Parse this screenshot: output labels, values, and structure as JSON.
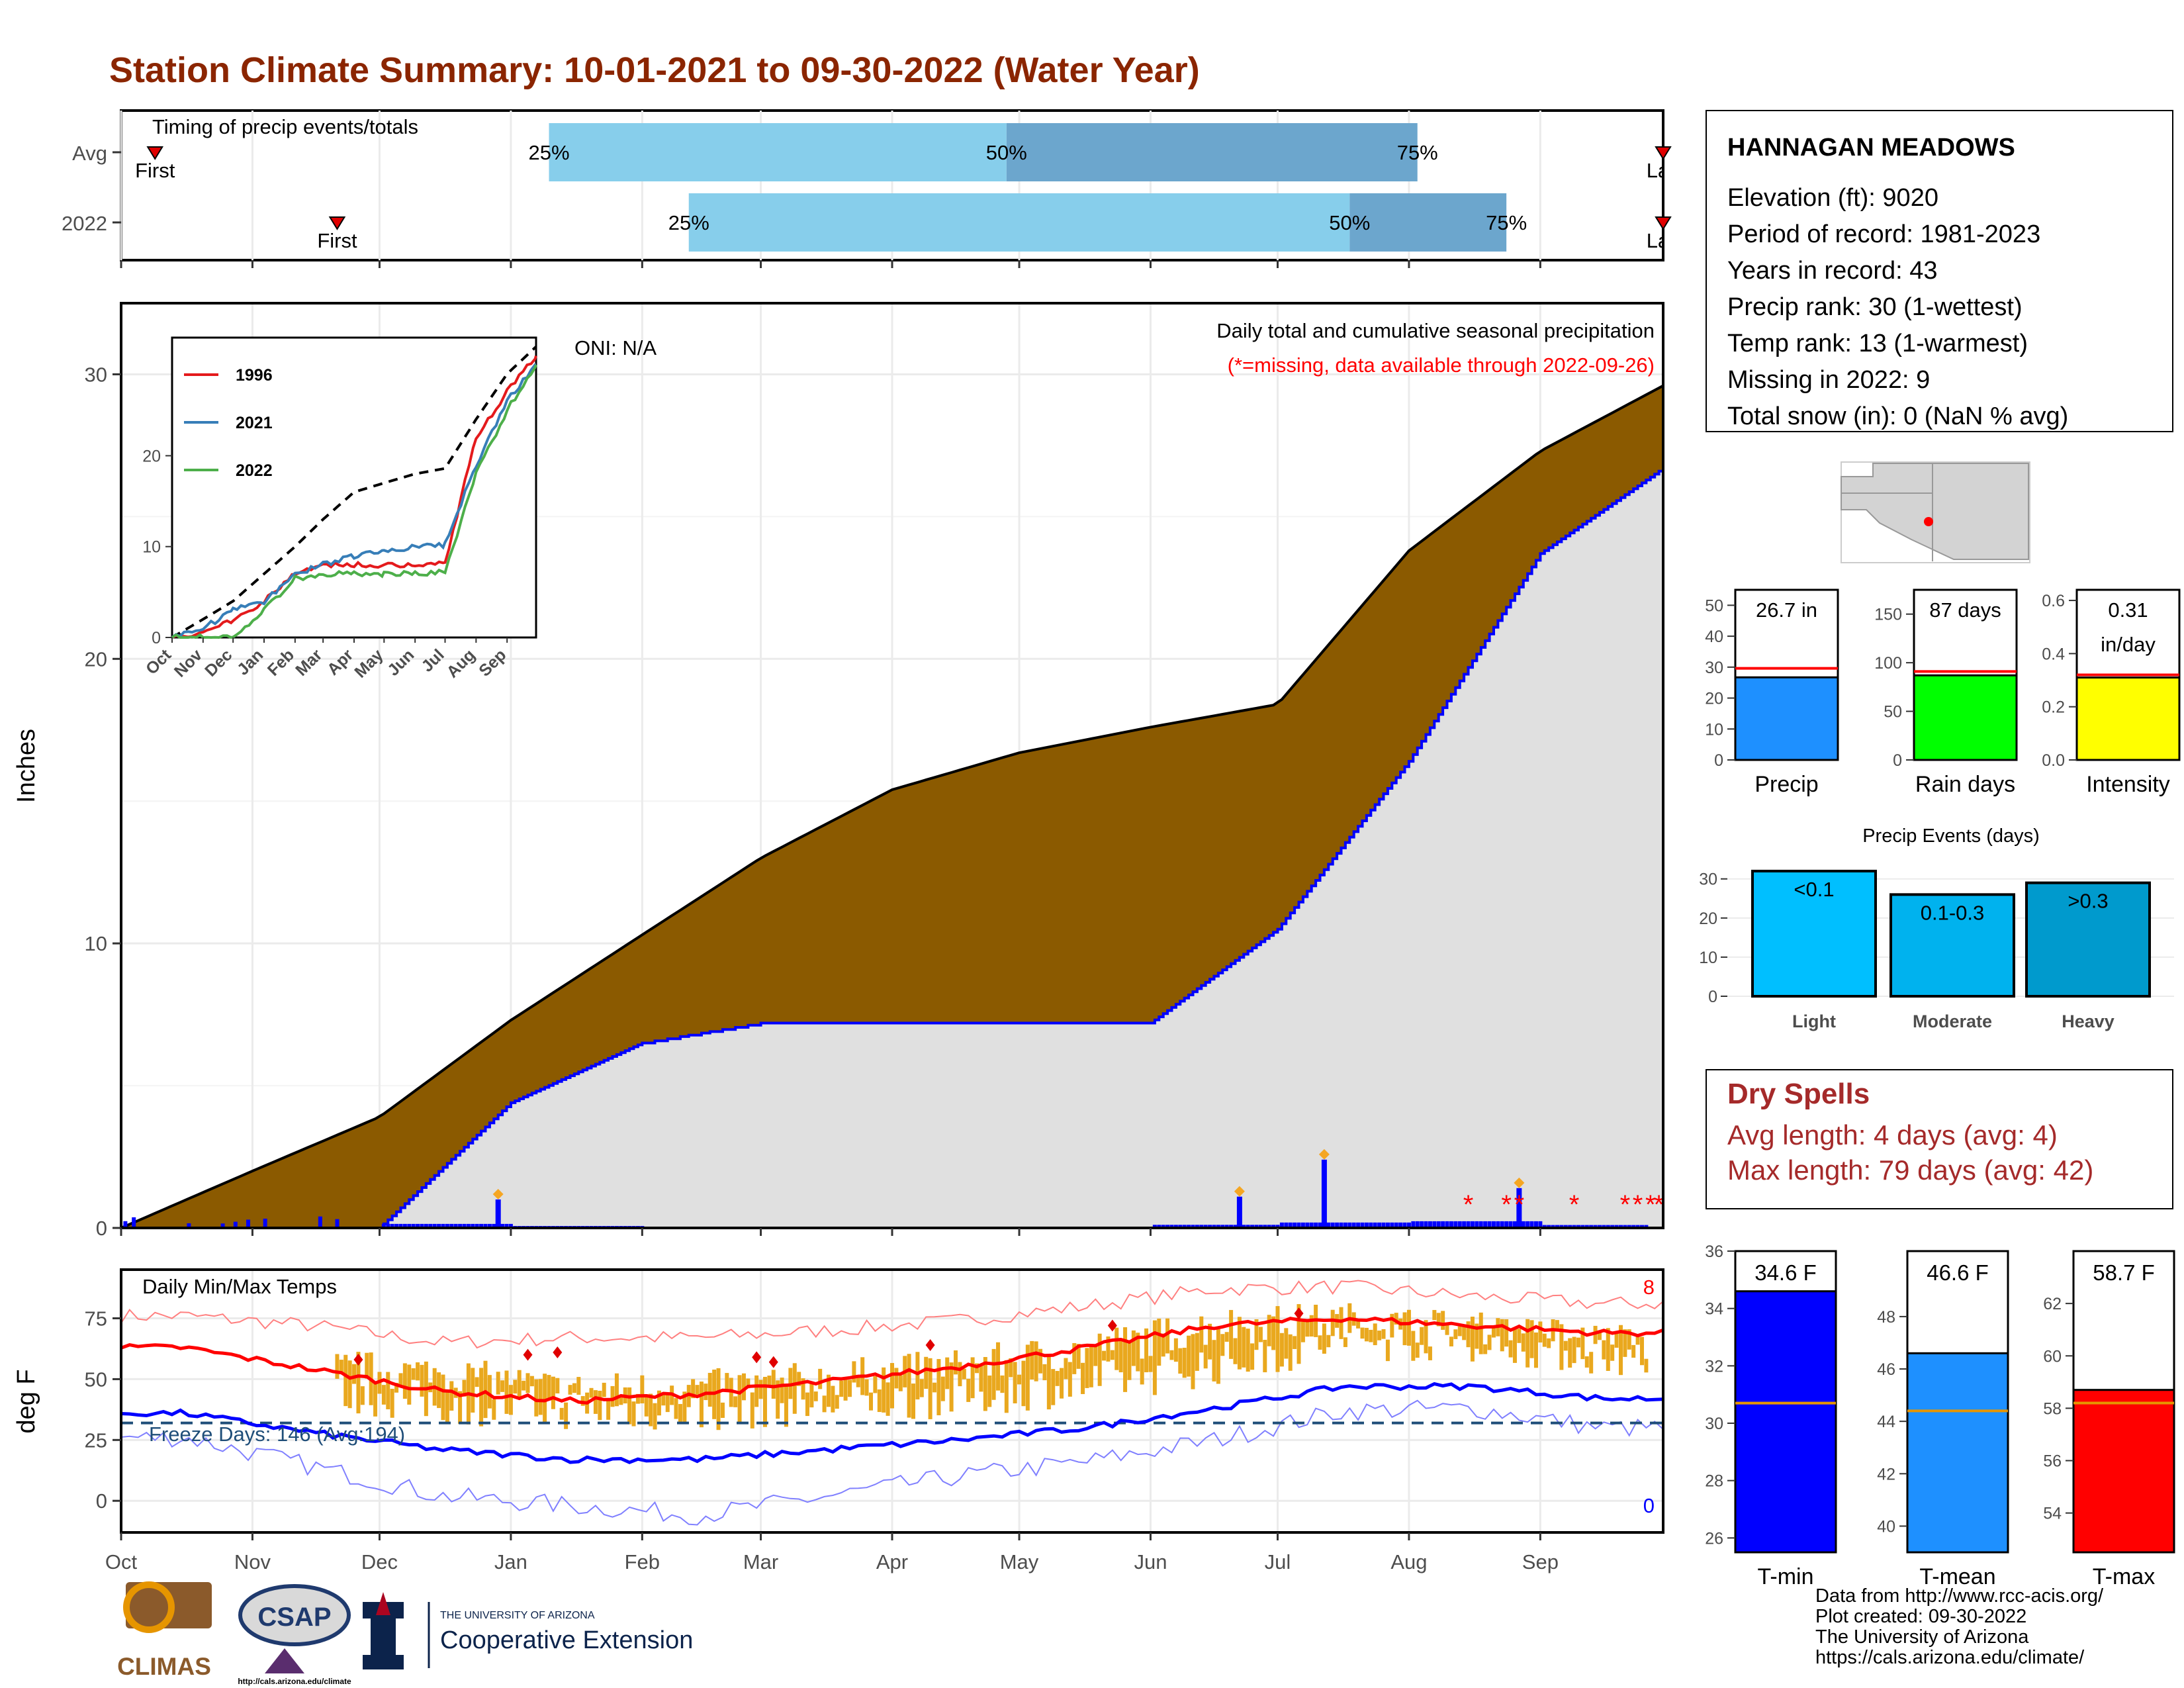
{
  "title": "Station Climate Summary: 10-01-2021 to 09-30-2022 (Water Year)",
  "colors": {
    "title": "#8B2500",
    "brown": "#8B5A00",
    "grey_fill": "#e0e0e0",
    "blue": "#0000ff",
    "light_blue": "#87ceeb",
    "mid_blue": "#6ca6cd",
    "red": "#ff0000",
    "green": "#00ff00",
    "yellow": "#ffff00",
    "precip_blue": "#1e90ff",
    "orange": "#e9a81e",
    "dry_red": "#a52a2a",
    "cyan": "#00bfff",
    "cyan2": "#00b2ee",
    "cyan3": "#009acd"
  },
  "timing": {
    "label": "Timing of precip events/totals",
    "rows": [
      {
        "name": "Avg",
        "first_label": "First",
        "last_label": "Last",
        "first_day": 8,
        "last_day": 364,
        "p25": 101,
        "p50": 209,
        "p75": 306,
        "p25_label": "25%",
        "p50_label": "50%",
        "p75_label": "75%"
      },
      {
        "name": "2022",
        "first_label": "First",
        "last_label": "Last",
        "first_day": 51,
        "last_day": 364,
        "p25": 134,
        "p50": 290,
        "p75": 327,
        "p25_label": "25%",
        "p50_label": "50%",
        "p75_label": "75%"
      }
    ]
  },
  "main": {
    "ylabel": "Inches",
    "oni": "ONI: N/A",
    "caption1": "Daily total and cumulative seasonal precipitation",
    "caption2": "(*=missing, data available through 2022-09-26)",
    "yticks": [
      "0",
      "10",
      "20",
      "30"
    ]
  },
  "inset": {
    "legend": [
      "1996",
      "2021",
      "2022"
    ],
    "legend_colors": [
      "#e41a1c",
      "#377eb8",
      "#4daf4a"
    ],
    "yticks": [
      "0",
      "10",
      "20"
    ],
    "xticks": [
      "Oct",
      "Nov",
      "Dec",
      "Jan",
      "Feb",
      "Mar",
      "Apr",
      "May",
      "Jun",
      "Jul",
      "Aug",
      "Sep"
    ]
  },
  "temps": {
    "label": "Daily Min/Max Temps",
    "ylabel": "deg F",
    "freeze": "Freeze Days: 146 (Avg:194)",
    "record_high_count": "8",
    "record_low_count": "0",
    "yticks": [
      "0",
      "25",
      "50",
      "75"
    ]
  },
  "months": [
    "Oct",
    "Nov",
    "Dec",
    "Jan",
    "Feb",
    "Mar",
    "Apr",
    "May",
    "Jun",
    "Jul",
    "Aug",
    "Sep"
  ],
  "station": {
    "name": "HANNAGAN MEADOWS",
    "lines": [
      "Elevation (ft): 9020",
      "Period of record: 1981-2023",
      "Years in record: 43",
      "Precip rank: 30 (1-wettest)",
      "Temp rank: 13 (1-warmest)",
      "Missing in 2022: 9",
      "Total snow (in): 0 (NaN % avg)"
    ]
  },
  "gauges": [
    {
      "label": "Precip",
      "value_label": "26.7 in",
      "value_label2": "",
      "value": 26.7,
      "avg": 29.6,
      "max": 55,
      "ticks": [
        "0",
        "10",
        "20",
        "30",
        "40",
        "50"
      ],
      "color": "#1e90ff"
    },
    {
      "label": "Rain days",
      "value_label": "87 days",
      "value_label2": "",
      "value": 87,
      "avg": 91,
      "max": 175,
      "ticks": [
        "0",
        "50",
        "100",
        "150"
      ],
      "color": "#00ff00"
    },
    {
      "label": "Intensity",
      "value_label": "0.31",
      "value_label2": "in/day",
      "value": 0.31,
      "avg": 0.32,
      "max": 0.64,
      "ticks": [
        "0.0",
        "0.2",
        "0.4",
        "0.6"
      ],
      "color": "#ffff00"
    }
  ],
  "events": {
    "title": "Precip Events (days)",
    "ticks": [
      "0",
      "10",
      "20",
      "30"
    ],
    "bars": [
      {
        "label": "Light",
        "value_label": "<0.1",
        "value": 32,
        "color": "#00bfff"
      },
      {
        "label": "Moderate",
        "value_label": "0.1-0.3",
        "value": 26,
        "color": "#00b2ee"
      },
      {
        "label": "Heavy",
        "value_label": ">0.3",
        "value": 29,
        "color": "#009acd"
      }
    ]
  },
  "dry": {
    "title": "Dry Spells",
    "avg": "Avg length: 4 days (avg: 4)",
    "max": "Max length: 79 days (avg: 42)"
  },
  "tgauges": [
    {
      "label": "T-min",
      "value_label": "34.6 F",
      "value": 34.6,
      "avg": 30.7,
      "min": 25.5,
      "max": 36,
      "ticks": [
        "26",
        "28",
        "30",
        "32",
        "34",
        "36"
      ],
      "color": "#0000ff"
    },
    {
      "label": "T-mean",
      "value_label": "46.6 F",
      "value": 46.6,
      "avg": 44.4,
      "min": 39,
      "max": 50.5,
      "ticks": [
        "40",
        "42",
        "44",
        "46",
        "48"
      ],
      "color": "#1e90ff"
    },
    {
      "label": "T-max",
      "value_label": "58.7 F",
      "value": 58.7,
      "avg": 58.2,
      "min": 52.5,
      "max": 64,
      "ticks": [
        "54",
        "56",
        "58",
        "60",
        "62"
      ],
      "color": "#ff0000"
    }
  ],
  "footer": {
    "lines": [
      "Data from http://www.rcc-acis.org/",
      "Plot created: 09-30-2022",
      "The University of Arizona",
      "https://cals.arizona.edu/climate/"
    ],
    "climas": "CLIMAS",
    "csap": "CSAP",
    "csap_url": "http://cals.arizona.edu/climate",
    "ua_small": "THE UNIVERSITY OF ARIZONA",
    "ua_big": "Cooperative Extension"
  },
  "chart_data": [
    {
      "type": "area",
      "title": "Daily total and cumulative seasonal precipitation",
      "ylabel": "Inches",
      "ylim": [
        0,
        32.5
      ],
      "x": [
        "Oct",
        "Nov",
        "Dec",
        "Jan",
        "Feb",
        "Mar",
        "Apr",
        "May",
        "Jun",
        "Jul",
        "Aug",
        "Sep",
        "Sep 30"
      ],
      "series": [
        {
          "name": "Avg",
          "values": [
            0,
            2.0,
            3.9,
            7.3,
            10.3,
            13.0,
            15.4,
            16.7,
            17.6,
            18.4,
            23.8,
            27.3,
            29.6
          ]
        },
        {
          "name": "2022",
          "values": [
            0,
            0,
            0,
            4.4,
            6.5,
            7.2,
            7.2,
            7.2,
            7.2,
            10.5,
            16.4,
            23.7,
            26.7
          ]
        }
      ],
      "daily_large_events": [
        {
          "x": "Dec 29",
          "y": 1.0
        },
        {
          "x": "Jun 22",
          "y": 1.1
        },
        {
          "x": "Jul 12",
          "y": 2.4
        },
        {
          "x": "Aug 27",
          "y": 1.4
        }
      ]
    },
    {
      "type": "line",
      "title": "",
      "legend": [
        "1996",
        "2021",
        "2022"
      ],
      "x": [
        "Oct",
        "Nov",
        "Dec",
        "Jan",
        "Feb",
        "Mar",
        "Apr",
        "May",
        "Jun",
        "Jul",
        "Aug",
        "Sep",
        "Sep 30"
      ],
      "ylim": [
        0,
        32
      ],
      "series": [
        {
          "name": "Avg",
          "values": [
            0,
            2,
            4,
            7,
            10,
            13,
            16,
            17,
            18,
            18.6,
            24,
            29,
            32
          ]
        },
        {
          "name": "1996",
          "values": [
            0,
            0.5,
            2,
            4,
            7,
            8,
            8,
            8,
            8,
            8.2,
            22,
            27,
            31
          ]
        },
        {
          "name": "2021",
          "values": [
            0,
            1,
            3,
            4,
            7,
            8,
            9,
            9.5,
            10,
            10.2,
            19,
            26,
            30
          ]
        },
        {
          "name": "2022",
          "values": [
            0,
            0,
            0,
            3,
            6.5,
            7,
            7,
            7,
            7,
            7.2,
            18,
            25,
            30
          ]
        }
      ]
    },
    {
      "type": "line",
      "title": "Daily Min/Max Temps",
      "ylabel": "deg F",
      "ylim": [
        -13,
        95
      ],
      "x": [
        "Oct",
        "Nov",
        "Dec",
        "Jan",
        "Feb",
        "Mar",
        "Apr",
        "May",
        "Jun",
        "Jul",
        "Aug",
        "Sep"
      ],
      "series": [
        {
          "name": "Avg max",
          "values": [
            63,
            54,
            45,
            41,
            44,
            49,
            55,
            63,
            72,
            75,
            72,
            69
          ]
        },
        {
          "name": "Avg min",
          "values": [
            36,
            28,
            21,
            17,
            17,
            21,
            25,
            30,
            38,
            47,
            47,
            42
          ]
        },
        {
          "name": "Record max",
          "values": [
            76,
            72,
            65,
            67,
            67,
            70,
            74,
            80,
            87,
            88,
            84,
            81
          ]
        },
        {
          "name": "Record min",
          "values": [
            26,
            14,
            2,
            -2,
            -6,
            2,
            10,
            16,
            25,
            37,
            38,
            30
          ]
        },
        {
          "name": "2022 max",
          "values": [
            60,
            55,
            52,
            45,
            46,
            50,
            55,
            62,
            72,
            74,
            70,
            65
          ]
        },
        {
          "name": "2022 min",
          "values": [
            33,
            28,
            22,
            20,
            19,
            22,
            25,
            30,
            38,
            48,
            48,
            42
          ]
        }
      ],
      "freeze_line": 32
    },
    {
      "type": "bar",
      "title": "Precip Events (days)",
      "categories": [
        "Light",
        "Moderate",
        "Heavy"
      ],
      "values": [
        32,
        26,
        29
      ],
      "ylim": [
        0,
        33
      ]
    },
    {
      "type": "bar",
      "title": "",
      "categories": [
        "Precip",
        "Rain days",
        "Intensity"
      ],
      "values": [
        26.7,
        87,
        0.31
      ],
      "averages": [
        29.6,
        91,
        0.32
      ]
    },
    {
      "type": "bar",
      "title": "",
      "categories": [
        "T-min",
        "T-mean",
        "T-max"
      ],
      "values": [
        34.6,
        46.6,
        58.7
      ],
      "averages": [
        30.7,
        44.4,
        58.2
      ]
    }
  ]
}
